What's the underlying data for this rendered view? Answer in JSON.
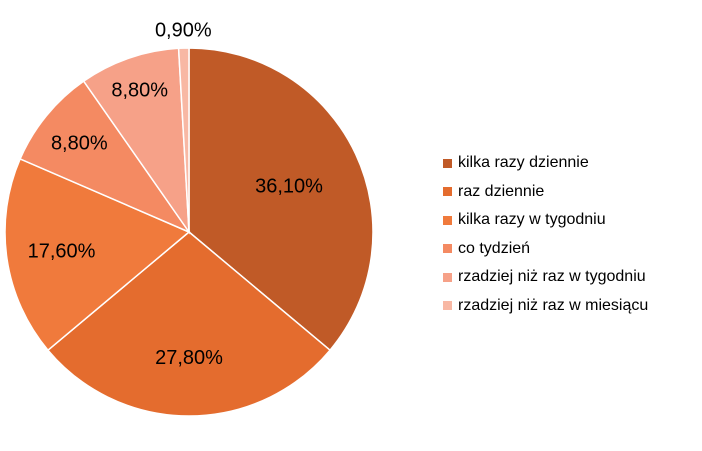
{
  "chart_data": {
    "type": "pie",
    "title": "",
    "start_angle_deg": 0,
    "direction": "clockwise",
    "legend_position": "right",
    "slices": [
      {
        "name": "kilka razy dziennie",
        "value": 36.1,
        "label": "36,10%",
        "color": "#C05A27"
      },
      {
        "name": "raz dziennie",
        "value": 27.8,
        "label": "27,80%",
        "color": "#E46C2E"
      },
      {
        "name": "kilka razy w tygodniu",
        "value": 17.6,
        "label": "17,60%",
        "color": "#F07A3C"
      },
      {
        "name": "co tydzień",
        "value": 8.8,
        "label": "8,80%",
        "color": "#F48A62"
      },
      {
        "name": "rzadziej niż raz w tygodniu",
        "value": 8.8,
        "label": "8,80%",
        "color": "#F6A188"
      },
      {
        "name": "rzadziej niż raz w miesiącu",
        "value": 0.9,
        "label": "0,90%",
        "color": "#F8B8A4"
      }
    ]
  }
}
